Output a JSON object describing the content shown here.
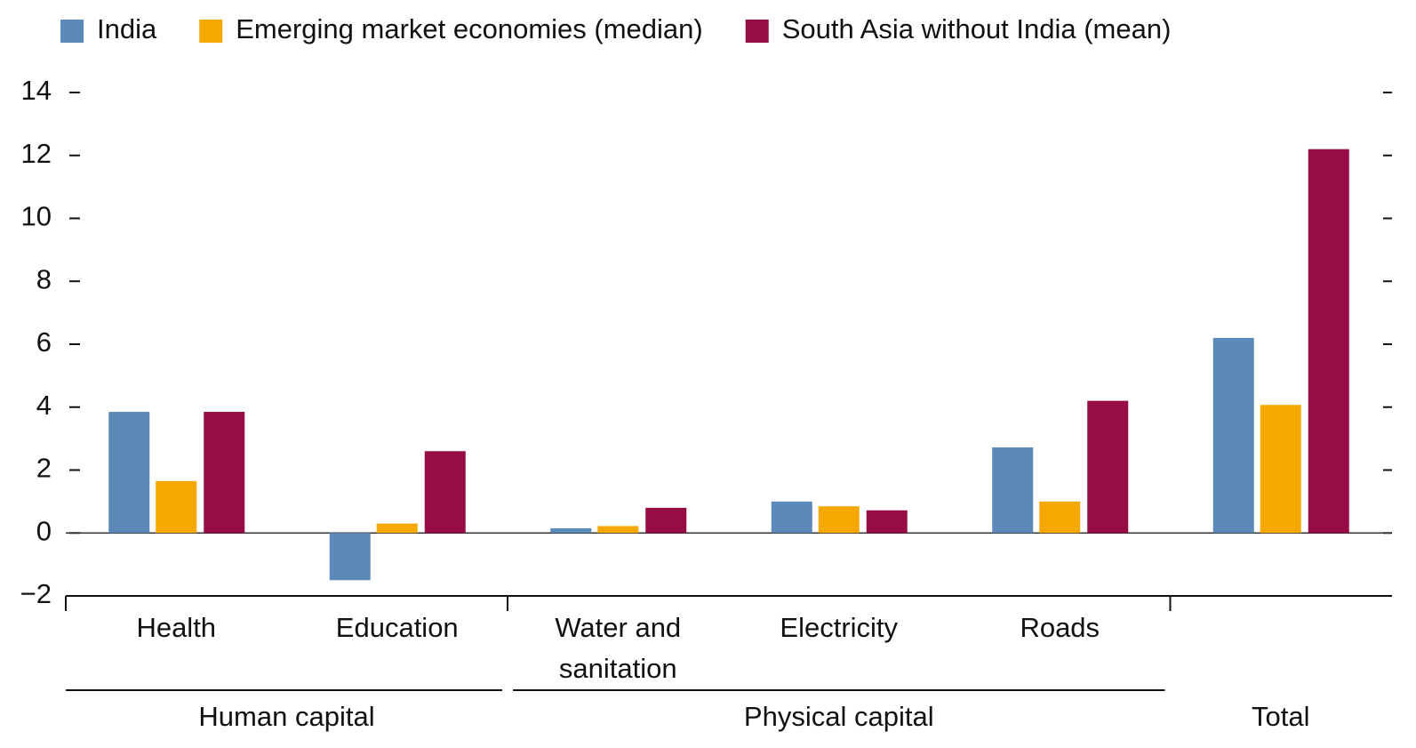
{
  "chart_data": {
    "type": "bar",
    "categories": [
      "Health",
      "Education",
      "Water and sanitation",
      "Electricity",
      "Roads",
      ""
    ],
    "groups": [
      {
        "name": "Human capital",
        "span": 2
      },
      {
        "name": "Physical capital",
        "span": 3
      },
      {
        "name": "Total",
        "span": 1
      }
    ],
    "series": [
      {
        "name": "India",
        "color": "#5b8ab8",
        "values": [
          3.85,
          -1.5,
          0.15,
          1.0,
          2.72,
          6.2
        ]
      },
      {
        "name": "Emerging market economies (median)",
        "color": "#f5a800",
        "values": [
          1.65,
          0.3,
          0.22,
          0.85,
          1.0,
          4.07
        ]
      },
      {
        "name": "South Asia without India (mean)",
        "color": "#970c45",
        "values": [
          3.85,
          2.6,
          0.8,
          0.72,
          4.2,
          12.2
        ]
      }
    ],
    "ylim": [
      -2,
      14
    ],
    "yticks": [
      {
        "value": -2,
        "label": "−2"
      },
      0,
      2,
      4,
      6,
      8,
      10,
      12,
      14
    ],
    "legend": "top"
  }
}
